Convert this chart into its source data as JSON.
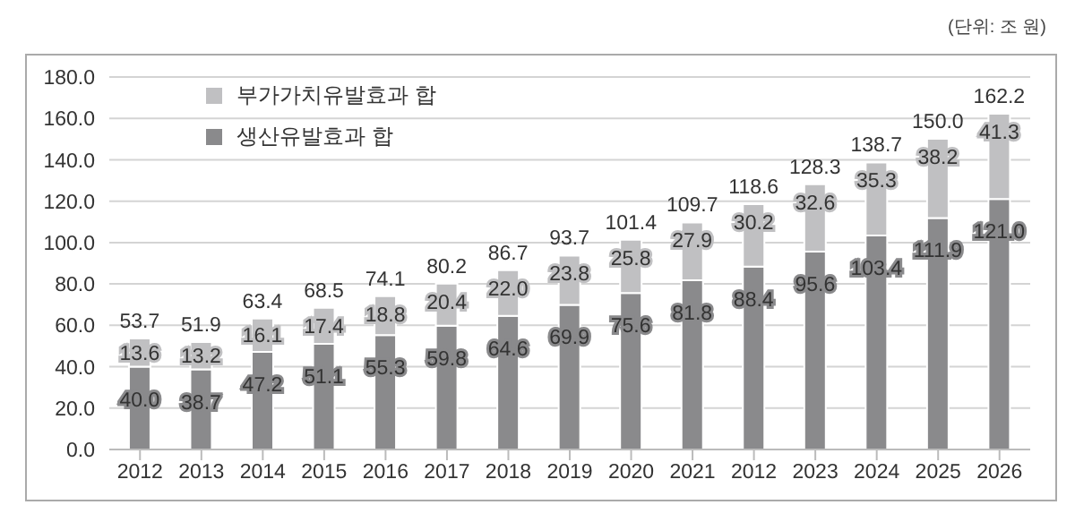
{
  "chart_data": {
    "type": "bar",
    "stacked": true,
    "annotations": [
      "(단위: 조 원)"
    ],
    "categories": [
      "2012",
      "2013",
      "2014",
      "2015",
      "2016",
      "2017",
      "2018",
      "2019",
      "2020",
      "2021",
      "2012",
      "2023",
      "2024",
      "2025",
      "2026"
    ],
    "series": [
      {
        "name": "생산유발효과 합",
        "color": "#8a8a8c",
        "values": [
          40.0,
          38.7,
          47.2,
          51.1,
          55.3,
          59.8,
          64.6,
          69.9,
          75.6,
          81.8,
          88.4,
          95.6,
          103.4,
          111.9,
          121.0
        ],
        "value_labels": [
          "40.0",
          "38.7",
          "47.2",
          "51.1",
          "55.3",
          "59.8",
          "64.6",
          "69.9",
          "75.6",
          "81.8",
          "88.4",
          "95.6",
          "103.4",
          "111.9",
          "121.0"
        ]
      },
      {
        "name": "부가가치유발효과 합",
        "color": "#c0c0c2",
        "values": [
          13.6,
          13.2,
          16.1,
          17.4,
          18.8,
          20.4,
          22.0,
          23.8,
          25.8,
          27.9,
          30.2,
          32.6,
          35.3,
          38.2,
          41.3
        ],
        "value_labels": [
          "13.6",
          "13.2",
          "16.1",
          "17.4",
          "18.8",
          "20.4",
          "22.0",
          "23.8",
          "25.8",
          "27.9",
          "30.2",
          "32.6",
          "35.3",
          "38.2",
          "41.3"
        ]
      }
    ],
    "totals": [
      "53.7",
      "51.9",
      "63.4",
      "68.5",
      "74.1",
      "80.2",
      "86.7",
      "93.7",
      "101.4",
      "109.7",
      "118.6",
      "128.3",
      "138.7",
      "150.0",
      "162.2"
    ],
    "ylim": [
      0,
      180
    ],
    "yticks": [
      {
        "value": 0,
        "label": "0.0"
      },
      {
        "value": 20,
        "label": "20.0"
      },
      {
        "value": 40,
        "label": "40.0"
      },
      {
        "value": 60,
        "label": "60.0"
      },
      {
        "value": 80,
        "label": "80.0"
      },
      {
        "value": 100,
        "label": "100.0"
      },
      {
        "value": 120,
        "label": "120.0"
      },
      {
        "value": 140,
        "label": "140.0"
      },
      {
        "value": 160,
        "label": "160.0"
      },
      {
        "value": 180,
        "label": "180.0"
      }
    ],
    "grid": "y",
    "legend": "top left"
  }
}
